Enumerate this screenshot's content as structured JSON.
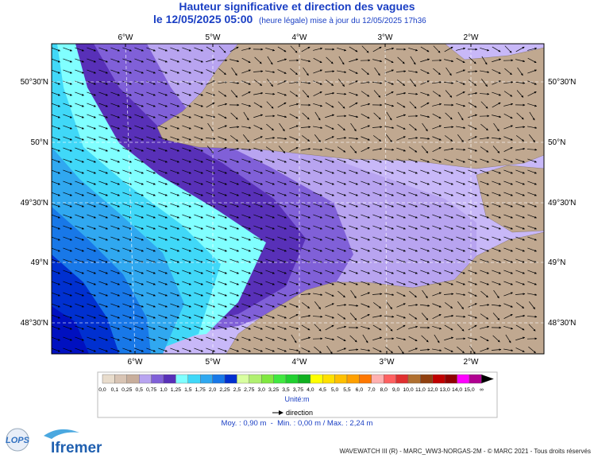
{
  "header": {
    "title": "Hauteur significative et direction des vagues",
    "date": "le 12/05/2025 05:00",
    "update": "(heure légale) mise à jour du 12/05/2025 17h36"
  },
  "map": {
    "lon_labels": [
      "6°W",
      "5°W",
      "4°W",
      "3°W",
      "2°W"
    ],
    "lat_labels": [
      "50°30'N",
      "50°N",
      "49°30'N",
      "49°N",
      "48°30'N"
    ]
  },
  "legend": {
    "labels": [
      "0,0",
      "0,1",
      "0,25",
      "0,5",
      "0,75",
      "1,0",
      "1,25",
      "1,5",
      "1,75",
      "2,0",
      "2,25",
      "2,5",
      "2,75",
      "3,0",
      "3,25",
      "3,5",
      "3,75",
      "4,0",
      "4,5",
      "5,0",
      "5,5",
      "6,0",
      "7,0",
      "8,0",
      "9,0",
      "10,0",
      "11,0",
      "12,0",
      "13,0",
      "14,0",
      "15,0",
      "∞"
    ],
    "colors": [
      "#e8dccc",
      "#d8c4b4",
      "#c8ae9c",
      "#b8a4f0",
      "#8060d8",
      "#5830b8",
      "#80ffff",
      "#40d8f8",
      "#30a8f0",
      "#1878e8",
      "#0030d0",
      "#d8ffa0",
      "#b0f070",
      "#80e840",
      "#40e840",
      "#20d030",
      "#10b020",
      "#ffff00",
      "#ffe000",
      "#ffc000",
      "#ffa000",
      "#ff7800",
      "#ffb0b0",
      "#ff6060",
      "#e03030",
      "#b07030",
      "#904010",
      "#c00000",
      "#900000",
      "#ff00ff",
      "#b00090"
    ],
    "unit": "Unité:m",
    "direction": "direction"
  },
  "stats": "Moy. : 0,90 m  -  Min. : 0,00 m / Max. : 2,24 m",
  "footer": "WAVEWATCH III (R) - MARC_WW3-NORGAS-2M - © MARC 2021 - Tous droits réservés",
  "logos": {
    "lops": "LOPS",
    "ifremer": "Ifremer"
  }
}
